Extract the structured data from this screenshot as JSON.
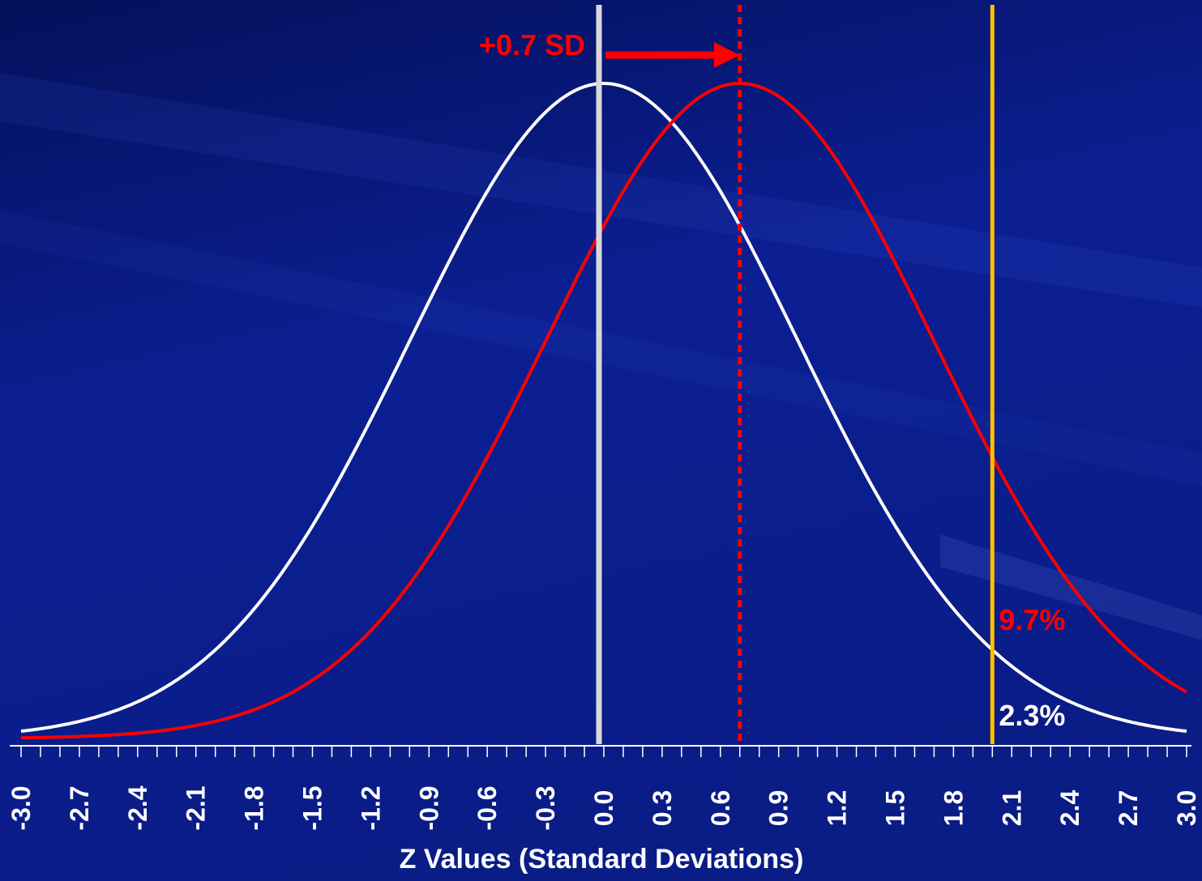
{
  "chart_data": {
    "type": "line",
    "xlabel": "Z Values (Standard Deviations)",
    "xlim": [
      -3.0,
      3.0
    ],
    "x_ticks": [
      "-3.0",
      "-2.7",
      "-2.4",
      "-2.1",
      "-1.8",
      "-1.5",
      "-1.2",
      "-0.9",
      "-0.6",
      "-0.3",
      "0.0",
      "0.3",
      "0.6",
      "0.9",
      "1.2",
      "1.5",
      "1.8",
      "2.1",
      "2.4",
      "2.7",
      "3.0"
    ],
    "series": [
      {
        "mean": 0.0,
        "sd": 1.0,
        "color": "#ffffff"
      },
      {
        "mean": 0.7,
        "sd": 1.0,
        "color": "#ff0000"
      }
    ],
    "reference_lines": [
      {
        "x": 0.0,
        "color": "#d8d8d8",
        "style": "solid"
      },
      {
        "x": 0.7,
        "color": "#ff0000",
        "style": "dotted"
      },
      {
        "x": 2.0,
        "color": "#ffc000",
        "style": "solid"
      }
    ],
    "annotations": {
      "shift_label": "+0.7 SD",
      "red_tail": "9.7%",
      "white_tail": "2.3%"
    },
    "colors": {
      "background": "#0a1a8a",
      "white_curve": "#ffffff",
      "red_curve": "#ff0000",
      "threshold": "#ffc000"
    }
  }
}
